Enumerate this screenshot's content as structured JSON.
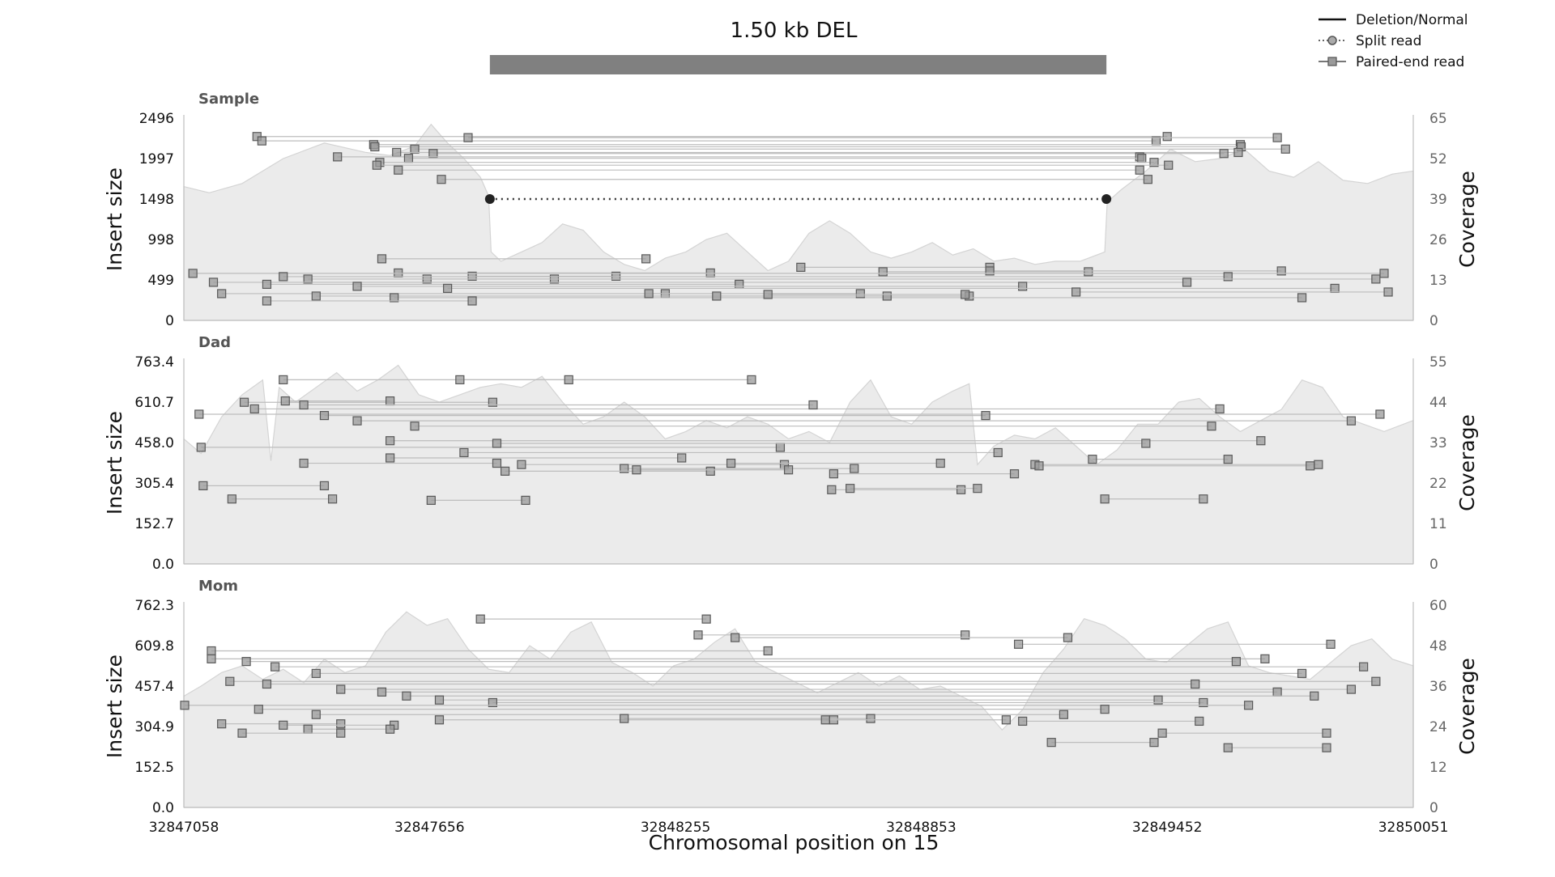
{
  "chart_data": {
    "type": "line",
    "title": "1.50 kb DEL",
    "xlabel": "Chromosomal position on 15",
    "x_ticks": [
      "32847058",
      "32847656",
      "32848255",
      "32848853",
      "32849452",
      "32850051"
    ],
    "xlim": [
      32847058,
      32850051
    ],
    "sv_region": [
      32847803,
      32849304
    ],
    "legend": {
      "placement": "top-right",
      "entries": [
        "Deletion/Normal",
        "Split read",
        "Paired-end read"
      ]
    },
    "colors": {
      "coverage_fill": "#ebebeb",
      "coverage_line": "#d4d4d4",
      "sv_bar": "#808080",
      "read_line": "#bdbdbd",
      "marker_fill": "#9a9a9a",
      "marker_edge": "#5a5a5a",
      "axis": "#bfbfbf",
      "panel_title": "#555555"
    },
    "panels": [
      {
        "name": "Sample",
        "ylabel": "Insert size",
        "y2label": "Coverage",
        "y_ticks": [
          "0",
          "499",
          "998",
          "1498",
          "1997",
          "2496"
        ],
        "ylim": [
          0,
          2496
        ],
        "y2_ticks": [
          "0",
          "13",
          "26",
          "39",
          "52",
          "65"
        ],
        "y2lim": [
          0,
          65
        ],
        "coverage": {
          "x": [
            32847058,
            32847120,
            32847200,
            32847300,
            32847400,
            32847500,
            32847560,
            32847620,
            32847660,
            32847700,
            32847740,
            32847780,
            32847800,
            32847806,
            32847830,
            32847880,
            32847930,
            32847980,
            32848030,
            32848080,
            32848130,
            32848180,
            32848230,
            32848280,
            32848330,
            32848380,
            32848430,
            32848480,
            32848530,
            32848580,
            32848630,
            32848680,
            32848730,
            32848780,
            32848830,
            32848880,
            32848930,
            32848980,
            32849030,
            32849080,
            32849130,
            32849180,
            32849240,
            32849300,
            32849306,
            32849340,
            32849400,
            32849460,
            32849520,
            32849580,
            32849640,
            32849700,
            32849760,
            32849820,
            32849880,
            32849940,
            32850000,
            32850051
          ],
          "values": [
            43,
            41,
            44,
            52,
            57,
            54,
            53,
            56,
            63,
            57,
            52,
            46,
            40,
            22,
            19,
            22,
            25,
            31,
            29,
            22,
            18,
            16,
            20,
            22,
            26,
            28,
            22,
            16,
            19,
            28,
            32,
            28,
            22,
            20,
            22,
            25,
            21,
            23,
            19,
            20,
            18,
            19,
            19,
            22,
            38,
            42,
            48,
            55,
            51,
            52,
            55,
            48,
            46,
            51,
            45,
            44,
            47,
            48
          ]
        },
        "split_reads": [
          {
            "x1": 32847803,
            "x2": 32849304,
            "y": 1498
          }
        ],
        "paired_reads": [
          {
            "x1": 32847236,
            "x2": 32849452,
            "y": 2269
          },
          {
            "x1": 32847248,
            "x2": 32849425,
            "y": 2215
          },
          {
            "x1": 32847520,
            "x2": 32849630,
            "y": 2169
          },
          {
            "x1": 32847523,
            "x2": 32849632,
            "y": 2142
          },
          {
            "x1": 32847620,
            "x2": 32849740,
            "y": 2114
          },
          {
            "x1": 32847576,
            "x2": 32849625,
            "y": 2072
          },
          {
            "x1": 32847665,
            "x2": 32849590,
            "y": 2059
          },
          {
            "x1": 32847432,
            "x2": 32849385,
            "y": 2018
          },
          {
            "x1": 32847605,
            "x2": 32849390,
            "y": 2000
          },
          {
            "x1": 32847535,
            "x2": 32849420,
            "y": 1950
          },
          {
            "x1": 32847528,
            "x2": 32849455,
            "y": 1915
          },
          {
            "x1": 32847580,
            "x2": 32849385,
            "y": 1855
          },
          {
            "x1": 32847685,
            "x2": 32849405,
            "y": 1740
          },
          {
            "x1": 32847750,
            "x2": 32849720,
            "y": 2255
          },
          {
            "x1": 32847540,
            "x2": 32848183,
            "y": 760
          },
          {
            "x1": 32847580,
            "x2": 32848340,
            "y": 585
          },
          {
            "x1": 32847760,
            "x2": 32848110,
            "y": 545
          },
          {
            "x1": 32847650,
            "x2": 32847960,
            "y": 510
          },
          {
            "x1": 32848560,
            "x2": 32849020,
            "y": 655
          },
          {
            "x1": 32848760,
            "x2": 32849260,
            "y": 600
          },
          {
            "x1": 32849020,
            "x2": 32849730,
            "y": 610
          },
          {
            "x1": 32847080,
            "x2": 32849980,
            "y": 580
          },
          {
            "x1": 32847300,
            "x2": 32849600,
            "y": 540
          },
          {
            "x1": 32847360,
            "x2": 32849960,
            "y": 510
          },
          {
            "x1": 32847130,
            "x2": 32849500,
            "y": 470
          },
          {
            "x1": 32847260,
            "x2": 32848410,
            "y": 445
          },
          {
            "x1": 32847480,
            "x2": 32849100,
            "y": 420
          },
          {
            "x1": 32847700,
            "x2": 32849860,
            "y": 395
          },
          {
            "x1": 32847150,
            "x2": 32848230,
            "y": 330
          },
          {
            "x1": 32847380,
            "x2": 32848970,
            "y": 300
          },
          {
            "x1": 32847570,
            "x2": 32849780,
            "y": 280
          },
          {
            "x1": 32847260,
            "x2": 32847760,
            "y": 240
          },
          {
            "x1": 32848190,
            "x2": 32848705,
            "y": 330
          },
          {
            "x1": 32848355,
            "x2": 32848770,
            "y": 300
          },
          {
            "x1": 32848480,
            "x2": 32848960,
            "y": 320
          },
          {
            "x1": 32849230,
            "x2": 32849990,
            "y": 350
          }
        ]
      },
      {
        "name": "Dad",
        "ylabel": "Insert size",
        "y2label": "Coverage",
        "y_ticks": [
          "0.0",
          "152.7",
          "305.4",
          "458.0",
          "610.7",
          "763.4"
        ],
        "ylim": [
          0,
          763.4
        ],
        "y2_ticks": [
          "0",
          "11",
          "22",
          "33",
          "44",
          "55"
        ],
        "y2lim": [
          0,
          55
        ],
        "coverage": {
          "x": [
            32847058,
            32847100,
            32847150,
            32847200,
            32847250,
            32847270,
            32847290,
            32847330,
            32847380,
            32847430,
            32847480,
            32847530,
            32847580,
            32847630,
            32847680,
            32847730,
            32847780,
            32847830,
            32847880,
            32847930,
            32847980,
            32848030,
            32848080,
            32848130,
            32848180,
            32848230,
            32848280,
            32848330,
            32848380,
            32848430,
            32848480,
            32848530,
            32848580,
            32848630,
            32848680,
            32848730,
            32848780,
            32848830,
            32848880,
            32848930,
            32848970,
            32848990,
            32849030,
            32849080,
            32849130,
            32849180,
            32849230,
            32849280,
            32849330,
            32849380,
            32849430,
            32849480,
            32849530,
            32849580,
            32849630,
            32849680,
            32849730,
            32849780,
            32849830,
            32849880,
            32849930,
            32849980,
            32850051
          ],
          "values": [
            34,
            30,
            40,
            46,
            50,
            28,
            48,
            44,
            48,
            52,
            47,
            50,
            54,
            46,
            44,
            46,
            48,
            49,
            48,
            51,
            44,
            38,
            40,
            44,
            40,
            34,
            36,
            39,
            37,
            40,
            38,
            34,
            36,
            33,
            44,
            50,
            40,
            38,
            44,
            47,
            49,
            27,
            32,
            35,
            34,
            37,
            32,
            27,
            31,
            38,
            38,
            44,
            45,
            40,
            36,
            39,
            42,
            50,
            48,
            40,
            38,
            36,
            39
          ]
        },
        "split_reads": [],
        "paired_reads": [
          {
            "x1": 32847300,
            "x2": 32848440,
            "y": 695
          },
          {
            "x1": 32847730,
            "x2": 32847995,
            "y": 695
          },
          {
            "x1": 32847205,
            "x2": 32847810,
            "y": 610
          },
          {
            "x1": 32847305,
            "x2": 32847560,
            "y": 615
          },
          {
            "x1": 32847095,
            "x2": 32849970,
            "y": 565
          },
          {
            "x1": 32847230,
            "x2": 32849580,
            "y": 585
          },
          {
            "x1": 32847350,
            "x2": 32848590,
            "y": 600
          },
          {
            "x1": 32847400,
            "x2": 32849010,
            "y": 560
          },
          {
            "x1": 32847480,
            "x2": 32849900,
            "y": 540
          },
          {
            "x1": 32847620,
            "x2": 32849560,
            "y": 520
          },
          {
            "x1": 32847100,
            "x2": 32848510,
            "y": 440
          },
          {
            "x1": 32847560,
            "x2": 32849680,
            "y": 465
          },
          {
            "x1": 32847820,
            "x2": 32849400,
            "y": 455
          },
          {
            "x1": 32847740,
            "x2": 32849040,
            "y": 420
          },
          {
            "x1": 32847560,
            "x2": 32848270,
            "y": 400
          },
          {
            "x1": 32847350,
            "x2": 32847820,
            "y": 380
          },
          {
            "x1": 32847880,
            "x2": 32848520,
            "y": 375
          },
          {
            "x1": 32848130,
            "x2": 32848690,
            "y": 360
          },
          {
            "x1": 32848390,
            "x2": 32848900,
            "y": 380
          },
          {
            "x1": 32849130,
            "x2": 32849820,
            "y": 375
          },
          {
            "x1": 32849140,
            "x2": 32849800,
            "y": 370
          },
          {
            "x1": 32847840,
            "x2": 32848340,
            "y": 350
          },
          {
            "x1": 32848160,
            "x2": 32848530,
            "y": 355
          },
          {
            "x1": 32848640,
            "x2": 32849080,
            "y": 340
          },
          {
            "x1": 32847105,
            "x2": 32847400,
            "y": 295
          },
          {
            "x1": 32848635,
            "x2": 32848950,
            "y": 280
          },
          {
            "x1": 32848680,
            "x2": 32848990,
            "y": 285
          },
          {
            "x1": 32847175,
            "x2": 32847420,
            "y": 245
          },
          {
            "x1": 32847660,
            "x2": 32847890,
            "y": 240
          },
          {
            "x1": 32849300,
            "x2": 32849540,
            "y": 245
          },
          {
            "x1": 32849270,
            "x2": 32849600,
            "y": 395
          }
        ]
      },
      {
        "name": "Mom",
        "ylabel": "Insert size",
        "y2label": "Coverage",
        "y_ticks": [
          "0.0",
          "152.5",
          "304.9",
          "457.4",
          "609.8",
          "762.3"
        ],
        "ylim": [
          0,
          762.3
        ],
        "y2_ticks": [
          "0",
          "12",
          "24",
          "36",
          "48",
          "60"
        ],
        "y2lim": [
          0,
          60
        ],
        "coverage": {
          "x": [
            32847058,
            32847100,
            32847150,
            32847200,
            32847250,
            32847300,
            32847350,
            32847400,
            32847450,
            32847500,
            32847550,
            32847600,
            32847650,
            32847700,
            32847750,
            32847800,
            32847850,
            32847900,
            32847950,
            32848000,
            32848050,
            32848100,
            32848150,
            32848200,
            32848250,
            32848300,
            32848350,
            32848400,
            32848450,
            32848500,
            32848550,
            32848600,
            32848650,
            32848700,
            32848750,
            32848800,
            32848850,
            32848900,
            32848950,
            32849000,
            32849050,
            32849100,
            32849150,
            32849200,
            32849250,
            32849300,
            32849350,
            32849400,
            32849450,
            32849500,
            32849550,
            32849600,
            32849650,
            32849700,
            32849750,
            32849800,
            32849850,
            32849900,
            32849950,
            32850000,
            32850051
          ],
          "values": [
            33,
            36,
            40,
            42,
            38,
            41,
            37,
            44,
            40,
            42,
            52,
            58,
            54,
            56,
            47,
            41,
            40,
            48,
            44,
            52,
            55,
            43,
            40,
            36,
            42,
            44,
            49,
            53,
            43,
            40,
            37,
            34,
            37,
            40,
            36,
            39,
            35,
            36,
            33,
            30,
            23,
            29,
            40,
            47,
            56,
            54,
            50,
            44,
            43,
            48,
            53,
            55,
            42,
            40,
            39,
            38,
            43,
            48,
            50,
            44,
            42
          ]
        },
        "split_reads": [],
        "paired_reads": [
          {
            "x1": 32847780,
            "x2": 32848330,
            "y": 710
          },
          {
            "x1": 32847125,
            "x2": 32848480,
            "y": 590
          },
          {
            "x1": 32848310,
            "x2": 32848960,
            "y": 650
          },
          {
            "x1": 32848400,
            "x2": 32849210,
            "y": 640
          },
          {
            "x1": 32849090,
            "x2": 32849850,
            "y": 615
          },
          {
            "x1": 32847125,
            "x2": 32849690,
            "y": 560
          },
          {
            "x1": 32847210,
            "x2": 32849620,
            "y": 550
          },
          {
            "x1": 32847280,
            "x2": 32849930,
            "y": 530
          },
          {
            "x1": 32847380,
            "x2": 32849780,
            "y": 505
          },
          {
            "x1": 32847170,
            "x2": 32849960,
            "y": 475
          },
          {
            "x1": 32847260,
            "x2": 32849520,
            "y": 465
          },
          {
            "x1": 32847440,
            "x2": 32849900,
            "y": 445
          },
          {
            "x1": 32847540,
            "x2": 32849720,
            "y": 435
          },
          {
            "x1": 32847600,
            "x2": 32849810,
            "y": 420
          },
          {
            "x1": 32847680,
            "x2": 32849430,
            "y": 405
          },
          {
            "x1": 32847810,
            "x2": 32849540,
            "y": 395
          },
          {
            "x1": 32847060,
            "x2": 32849650,
            "y": 385
          },
          {
            "x1": 32847240,
            "x2": 32849300,
            "y": 370
          },
          {
            "x1": 32847380,
            "x2": 32849200,
            "y": 350
          },
          {
            "x1": 32847680,
            "x2": 32848640,
            "y": 330
          },
          {
            "x1": 32847150,
            "x2": 32847440,
            "y": 315
          },
          {
            "x1": 32847300,
            "x2": 32847570,
            "y": 310
          },
          {
            "x1": 32848130,
            "x2": 32848730,
            "y": 335
          },
          {
            "x1": 32848620,
            "x2": 32849060,
            "y": 330
          },
          {
            "x1": 32849100,
            "x2": 32849530,
            "y": 325
          },
          {
            "x1": 32847360,
            "x2": 32847560,
            "y": 295
          },
          {
            "x1": 32847200,
            "x2": 32847440,
            "y": 280
          },
          {
            "x1": 32849440,
            "x2": 32849840,
            "y": 280
          },
          {
            "x1": 32849170,
            "x2": 32849420,
            "y": 245
          },
          {
            "x1": 32849600,
            "x2": 32849840,
            "y": 225
          }
        ]
      }
    ]
  }
}
